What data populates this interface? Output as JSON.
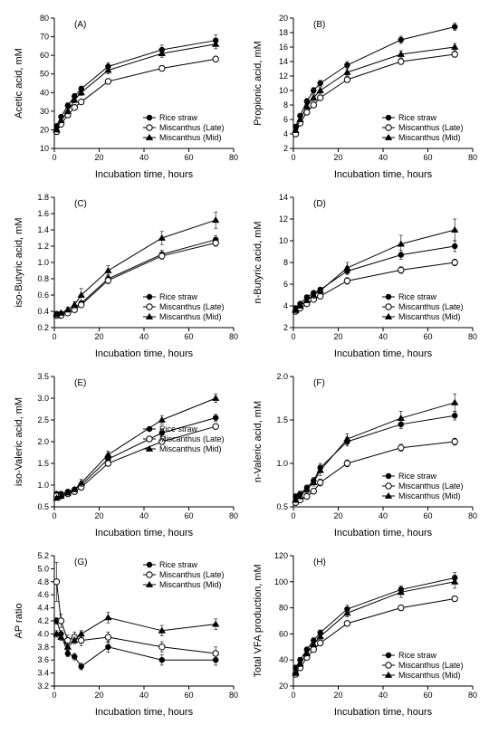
{
  "global": {
    "xlabel": "Incubation time, hours",
    "xlim": [
      0,
      80
    ],
    "xticks": [
      0,
      20,
      40,
      60,
      80
    ],
    "series_styles": {
      "rice": {
        "label": "Rice straw",
        "marker": "circle-filled",
        "color": "#000000"
      },
      "late": {
        "label": "Miscanthus (Late)",
        "marker": "circle-open",
        "color": "#000000"
      },
      "mid": {
        "label": "Miscanthus (Mid)",
        "marker": "triangle-filled",
        "color": "#000000"
      }
    },
    "marker_size": 3.2,
    "line_width": 1,
    "errorbar_width": 0.6,
    "background_color": "#ffffff",
    "axis_color": "#000000",
    "tick_font_size": 9,
    "label_font_size": 11,
    "legend_font_size": 9
  },
  "panels": {
    "A": {
      "letter": "(A)",
      "ylabel": "Acetic acid, mM",
      "ylim": [
        10,
        80
      ],
      "yticks": [
        10,
        20,
        30,
        40,
        50,
        60,
        70,
        80
      ],
      "legend_pos": "lower-right",
      "x": [
        1,
        3,
        6,
        9,
        12,
        24,
        48,
        72
      ],
      "series": {
        "rice": {
          "y": [
            22,
            27,
            33,
            38,
            42,
            54,
            63,
            68
          ],
          "err": [
            1,
            1,
            1.5,
            1.5,
            1.5,
            2,
            2.5,
            3
          ]
        },
        "late": {
          "y": [
            19,
            23,
            28,
            32,
            35,
            46,
            53,
            58
          ],
          "err": [
            1,
            1,
            1,
            1,
            1,
            1.5,
            1.5,
            1.5
          ]
        },
        "mid": {
          "y": [
            20,
            25,
            30,
            36,
            40,
            52,
            61,
            66
          ],
          "err": [
            1,
            1,
            1.5,
            1.5,
            1.5,
            2,
            2,
            2.5
          ]
        }
      }
    },
    "B": {
      "letter": "(B)",
      "ylabel": "Propionic acid, mM",
      "ylim": [
        2,
        20
      ],
      "yticks": [
        2,
        4,
        6,
        8,
        10,
        12,
        14,
        16,
        18,
        20
      ],
      "legend_pos": "lower-right",
      "x": [
        1,
        3,
        6,
        9,
        12,
        24,
        48,
        72
      ],
      "series": {
        "rice": {
          "y": [
            5,
            6.5,
            8.5,
            10,
            11,
            13.5,
            17,
            18.8
          ],
          "err": [
            0.3,
            0.3,
            0.4,
            0.4,
            0.4,
            0.5,
            0.5,
            0.5
          ]
        },
        "late": {
          "y": [
            4,
            5.5,
            7,
            8,
            9,
            11.5,
            14,
            15
          ],
          "err": [
            0.3,
            0.3,
            0.3,
            0.3,
            0.3,
            0.4,
            0.4,
            0.4
          ]
        },
        "mid": {
          "y": [
            4.5,
            6,
            7.8,
            9,
            10,
            12.5,
            15,
            16
          ],
          "err": [
            0.3,
            0.3,
            0.4,
            0.4,
            0.4,
            0.5,
            0.5,
            0.5
          ]
        }
      }
    },
    "C": {
      "letter": "(C)",
      "ylabel": "iso-Butyric acid, mM",
      "ylim": [
        0.2,
        1.8
      ],
      "yticks": [
        0.2,
        0.4,
        0.6,
        0.8,
        1.0,
        1.2,
        1.4,
        1.6,
        1.8
      ],
      "legend_pos": "lower-right",
      "x": [
        1,
        3,
        6,
        9,
        12,
        24,
        48,
        72
      ],
      "series": {
        "rice": {
          "y": [
            0.37,
            0.37,
            0.4,
            0.45,
            0.5,
            0.8,
            1.1,
            1.28
          ],
          "err": [
            0.02,
            0.02,
            0.02,
            0.02,
            0.03,
            0.05,
            0.05,
            0.05
          ]
        },
        "late": {
          "y": [
            0.35,
            0.35,
            0.38,
            0.42,
            0.48,
            0.78,
            1.08,
            1.24
          ],
          "err": [
            0.02,
            0.02,
            0.02,
            0.02,
            0.03,
            0.04,
            0.04,
            0.04
          ]
        },
        "mid": {
          "y": [
            0.36,
            0.38,
            0.42,
            0.48,
            0.6,
            0.9,
            1.3,
            1.52
          ],
          "err": [
            0.02,
            0.02,
            0.03,
            0.04,
            0.08,
            0.06,
            0.08,
            0.1
          ]
        }
      }
    },
    "D": {
      "letter": "(D)",
      "ylabel": "n-Butyric acid, mM",
      "ylim": [
        2,
        14
      ],
      "yticks": [
        2,
        4,
        6,
        8,
        10,
        12,
        14
      ],
      "legend_pos": "lower-right",
      "x": [
        1,
        3,
        6,
        9,
        12,
        24,
        48,
        72
      ],
      "series": {
        "rice": {
          "y": [
            3.8,
            4.2,
            4.8,
            5.2,
            5.5,
            7.2,
            8.7,
            9.5
          ],
          "err": [
            0.2,
            0.2,
            0.2,
            0.2,
            0.2,
            0.3,
            0.4,
            0.5
          ]
        },
        "late": {
          "y": [
            3.5,
            3.8,
            4.2,
            4.6,
            4.9,
            6.3,
            7.3,
            8.0
          ],
          "err": [
            0.2,
            0.2,
            0.2,
            0.2,
            0.2,
            0.3,
            0.3,
            0.3
          ]
        },
        "mid": {
          "y": [
            3.6,
            4.0,
            4.5,
            5.0,
            5.4,
            7.5,
            9.7,
            11.0
          ],
          "err": [
            0.2,
            0.2,
            0.2,
            0.3,
            0.3,
            0.5,
            0.8,
            1.0
          ]
        }
      }
    },
    "E": {
      "letter": "(E)",
      "ylabel": "iso-Valeric acid, mM",
      "ylim": [
        0.5,
        3.5
      ],
      "yticks": [
        0.5,
        1.0,
        1.5,
        2.0,
        2.5,
        3.0,
        3.5
      ],
      "legend_pos": "mid-right",
      "x": [
        1,
        3,
        6,
        9,
        12,
        24,
        48,
        72
      ],
      "series": {
        "rice": {
          "y": [
            0.8,
            0.8,
            0.85,
            0.9,
            1.0,
            1.6,
            2.2,
            2.55
          ],
          "err": [
            0.04,
            0.04,
            0.04,
            0.04,
            0.05,
            0.06,
            0.08,
            0.08
          ]
        },
        "late": {
          "y": [
            0.75,
            0.75,
            0.8,
            0.85,
            0.95,
            1.5,
            2.0,
            2.35
          ],
          "err": [
            0.04,
            0.04,
            0.04,
            0.04,
            0.05,
            0.06,
            0.06,
            0.06
          ]
        },
        "mid": {
          "y": [
            0.7,
            0.75,
            0.82,
            0.9,
            1.05,
            1.7,
            2.5,
            3.0
          ],
          "err": [
            0.04,
            0.04,
            0.04,
            0.05,
            0.08,
            0.08,
            0.1,
            0.1
          ]
        }
      }
    },
    "F": {
      "letter": "(F)",
      "ylabel": "n-Valeric acid, mM",
      "ylim": [
        0.5,
        2.0
      ],
      "yticks": [
        0.5,
        1.0,
        1.5,
        2.0
      ],
      "legend_pos": "lower-right",
      "x": [
        1,
        3,
        6,
        9,
        12,
        24,
        48,
        72
      ],
      "series": {
        "rice": {
          "y": [
            0.62,
            0.65,
            0.72,
            0.8,
            0.95,
            1.25,
            1.45,
            1.55
          ],
          "err": [
            0.03,
            0.03,
            0.03,
            0.04,
            0.05,
            0.05,
            0.05,
            0.05
          ]
        },
        "late": {
          "y": [
            0.55,
            0.58,
            0.62,
            0.68,
            0.78,
            1.0,
            1.18,
            1.25
          ],
          "err": [
            0.03,
            0.03,
            0.03,
            0.03,
            0.04,
            0.04,
            0.04,
            0.04
          ]
        },
        "mid": {
          "y": [
            0.58,
            0.62,
            0.7,
            0.78,
            0.92,
            1.28,
            1.52,
            1.7
          ],
          "err": [
            0.03,
            0.03,
            0.04,
            0.04,
            0.06,
            0.06,
            0.08,
            0.1
          ]
        }
      }
    },
    "G": {
      "letter": "(G)",
      "ylabel": "AP ratio",
      "ylim": [
        3.2,
        5.2
      ],
      "yticks": [
        3.2,
        3.4,
        3.6,
        3.8,
        4.0,
        4.2,
        4.4,
        4.6,
        4.8,
        5.0,
        5.2
      ],
      "legend_pos": "upper-right",
      "x": [
        1,
        3,
        6,
        9,
        12,
        24,
        48,
        72
      ],
      "series": {
        "rice": {
          "y": [
            4.2,
            4.0,
            3.7,
            3.65,
            3.5,
            3.8,
            3.6,
            3.6
          ],
          "err": [
            0.05,
            0.05,
            0.05,
            0.05,
            0.05,
            0.08,
            0.08,
            0.08
          ]
        },
        "late": {
          "y": [
            4.8,
            4.2,
            3.9,
            3.95,
            3.9,
            3.95,
            3.8,
            3.7
          ],
          "err": [
            0.3,
            0.1,
            0.08,
            0.08,
            0.08,
            0.08,
            0.08,
            0.1
          ]
        },
        "mid": {
          "y": [
            4.0,
            3.95,
            3.8,
            3.9,
            4.0,
            4.25,
            4.05,
            4.15
          ],
          "err": [
            0.05,
            0.05,
            0.05,
            0.05,
            0.05,
            0.08,
            0.08,
            0.08
          ]
        }
      }
    },
    "H": {
      "letter": "(H)",
      "ylabel": "Total VFA production, mM",
      "ylim": [
        20,
        120
      ],
      "yticks": [
        20,
        40,
        60,
        80,
        100,
        120
      ],
      "legend_pos": "lower-right",
      "x": [
        1,
        3,
        6,
        9,
        12,
        24,
        48,
        72
      ],
      "series": {
        "rice": {
          "y": [
            34,
            40,
            48,
            55,
            61,
            79,
            94,
            103
          ],
          "err": [
            2,
            2,
            2,
            2,
            2,
            3,
            3,
            4
          ]
        },
        "late": {
          "y": [
            29,
            34,
            42,
            48,
            53,
            68,
            80,
            87
          ],
          "err": [
            2,
            2,
            2,
            2,
            2,
            2,
            2,
            2
          ]
        },
        "mid": {
          "y": [
            30,
            37,
            45,
            52,
            58,
            76,
            92,
            100
          ],
          "err": [
            2,
            2,
            2,
            2,
            2,
            3,
            4,
            5
          ]
        }
      }
    }
  }
}
